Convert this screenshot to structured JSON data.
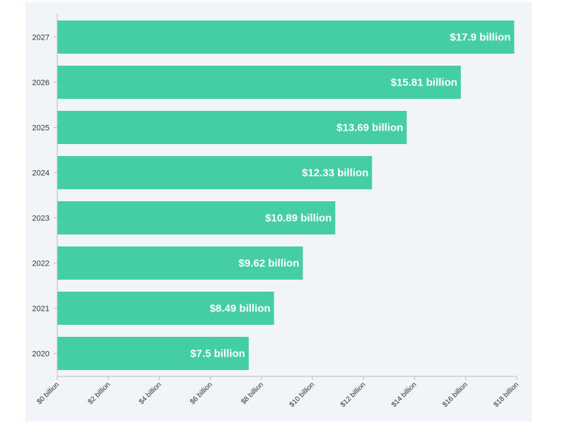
{
  "colors": {
    "bar": "#45cda3",
    "panel_background": "#f1f4f8",
    "axis": "#bbbbbb",
    "bar_label": "#ffffff"
  },
  "chart_data": {
    "type": "bar",
    "orientation": "horizontal",
    "categories": [
      "2027",
      "2026",
      "2025",
      "2024",
      "2023",
      "2022",
      "2021",
      "2020"
    ],
    "values": [
      17.9,
      15.81,
      13.69,
      12.33,
      10.89,
      9.62,
      8.49,
      7.5
    ],
    "data_labels": [
      "$17.9 billion",
      "$15.81 billion",
      "$13.69 billion",
      "$12.33 billion",
      "$10.89 billion",
      "$9.62 billion",
      "$8.49 billion",
      "$7.5 billion"
    ],
    "xticks": [
      0,
      2,
      4,
      6,
      8,
      10,
      12,
      14,
      16,
      18
    ],
    "xtick_labels": [
      "$0 billion",
      "$2 billion",
      "$4 billion",
      "$6 billion",
      "$8 billion",
      "$10 billion",
      "$12 billion",
      "$14 billion",
      "$16 billion",
      "$18 billion"
    ],
    "xlim": [
      0,
      18
    ],
    "title": "",
    "xlabel": "",
    "ylabel": "",
    "grid": false,
    "legend": "none"
  }
}
